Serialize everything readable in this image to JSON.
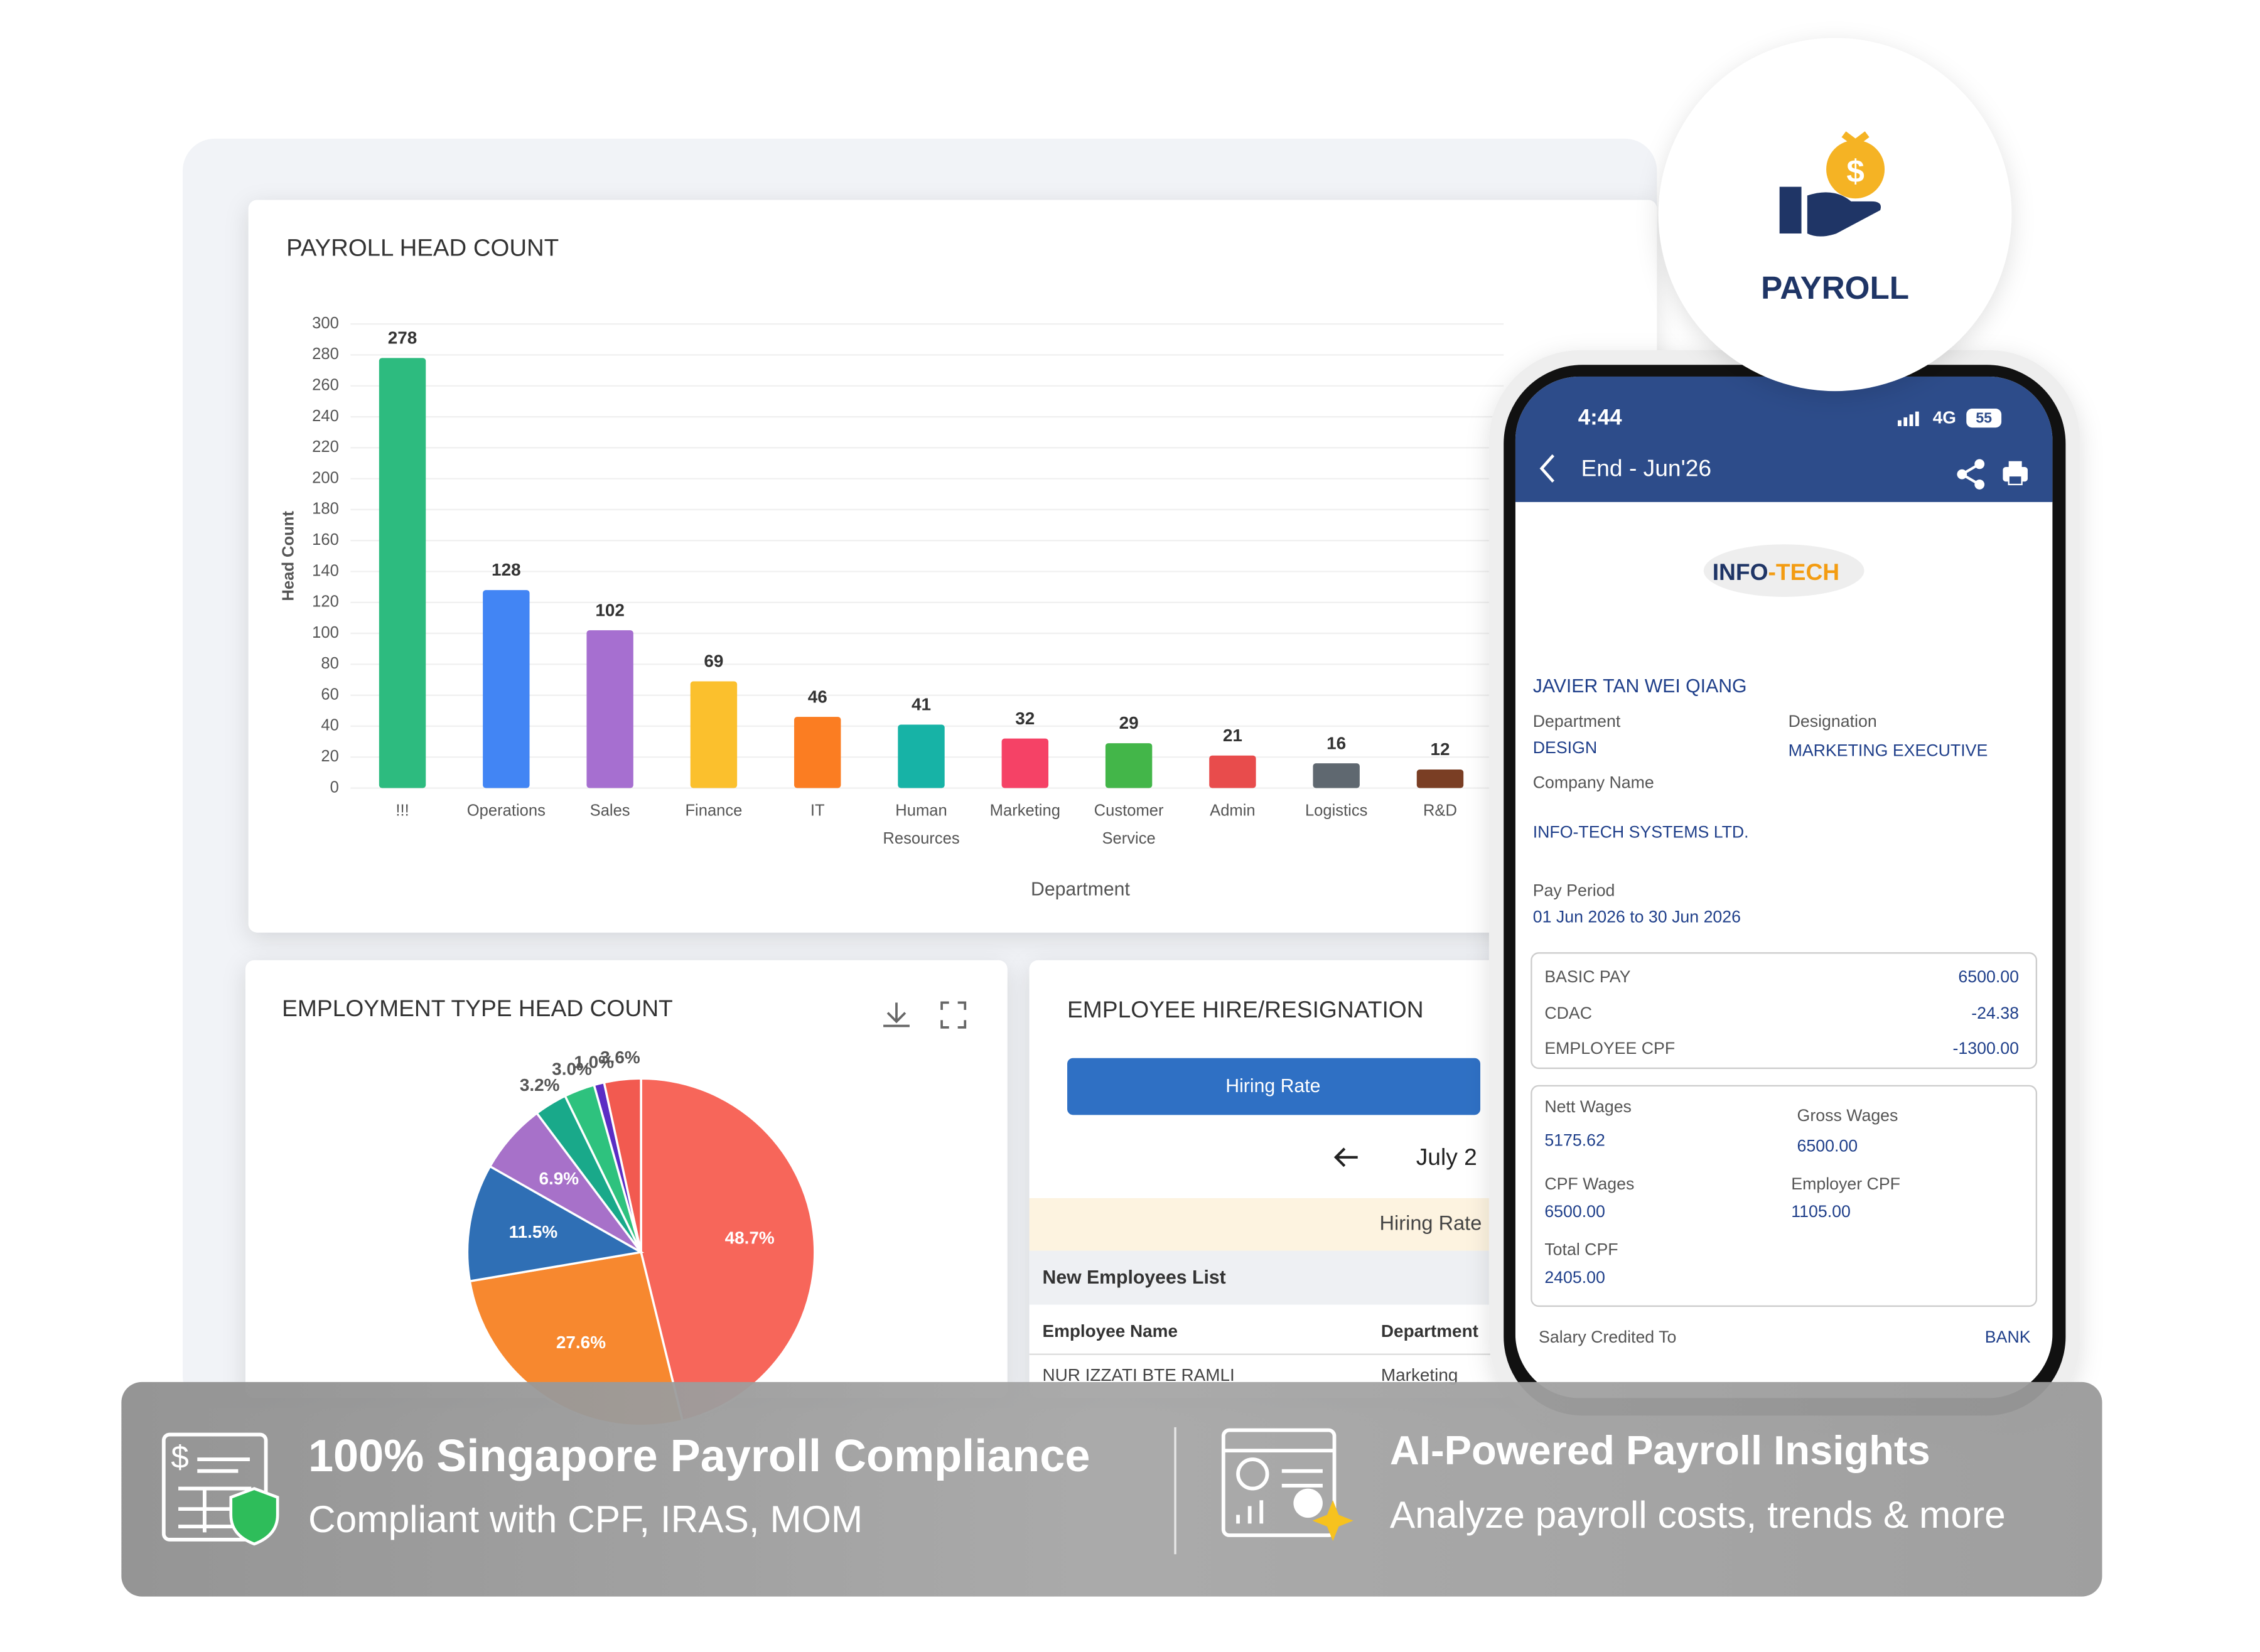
{
  "chart_data": [
    {
      "type": "bar",
      "title": "PAYROLL HEAD COUNT",
      "x_label": "Department",
      "y_label": "Head Count",
      "categories": [
        "!!!",
        "Operations",
        "Sales",
        "Finance",
        "IT",
        "Human Resources",
        "Marketing",
        "Customer Service",
        "Admin",
        "Logistics",
        "R&D"
      ],
      "values": [
        278,
        128,
        102,
        69,
        46,
        41,
        32,
        29,
        21,
        16,
        12
      ],
      "colors": [
        "#2dbb7f",
        "#4285f4",
        "#a66fd0",
        "#fbc02d",
        "#fb7d22",
        "#17b3a6",
        "#f54266",
        "#43b649",
        "#e84c4c",
        "#5f6870",
        "#7a3e24"
      ],
      "ylim": [
        0,
        300
      ],
      "yticks": [
        0,
        20,
        40,
        60,
        80,
        100,
        120,
        140,
        160,
        180,
        200,
        220,
        240,
        260,
        280,
        300
      ],
      "grid": true
    },
    {
      "type": "pie",
      "title": "EMPLOYMENT TYPE HEAD COUNT",
      "categories": [
        null,
        null,
        null,
        null,
        null,
        null,
        null,
        null
      ],
      "values": [
        48.7,
        27.6,
        11.5,
        6.9,
        3.2,
        3.0,
        1.0,
        3.6
      ],
      "value_labels": [
        "48.7%",
        "27.6%",
        "11.5%",
        "6.9%",
        "3.2%",
        "3.0%",
        "1.0%",
        "3.6%"
      ],
      "colors": [
        "#f7665a",
        "#f7882f",
        "#2f6fb5",
        "#a771c9",
        "#19a98a",
        "#2ec27e",
        "#5b2dc4",
        "#f25a50"
      ]
    }
  ],
  "badge": {
    "title": "PAYROLL"
  },
  "hire_panel": {
    "title": "EMPLOYEE HIRE/RESIGNATION",
    "button": "Hiring Rate",
    "month": "July 2",
    "subheader": "Hiring Rate",
    "list_title": "New Employees List",
    "columns": [
      "Employee Name",
      "Department"
    ],
    "rows": [
      [
        "NUR IZZATI BTE RAMLI",
        "Marketing"
      ]
    ]
  },
  "phone": {
    "time": "4:44",
    "network": "4G",
    "battery": "55",
    "nav_title": "End - Jun'26",
    "logo": [
      "INFO",
      "-TECH"
    ],
    "employee": "JAVIER TAN WEI QIANG",
    "fields": [
      [
        "Department",
        "DESIGN"
      ],
      [
        "Designation",
        "MARKETING EXECUTIVE"
      ],
      [
        "Company Name",
        "INFO-TECH SYSTEMS LTD."
      ],
      [
        "Pay Period",
        "01 Jun 2026 to 30 Jun 2026"
      ]
    ],
    "pay_items": [
      [
        "BASIC PAY",
        "6500.00"
      ],
      [
        "CDAC",
        "-24.38"
      ],
      [
        "EMPLOYEE CPF",
        "-1300.00"
      ]
    ],
    "summary": [
      [
        "Nett Wages",
        "5175.62"
      ],
      [
        "Gross Wages",
        "6500.00"
      ],
      [
        "CPF Wages",
        "6500.00"
      ],
      [
        "Employer CPF",
        "1105.00"
      ],
      [
        "Total CPF",
        "2405.00"
      ]
    ],
    "salary_credited": [
      "Salary Credited To",
      "BANK"
    ]
  },
  "banner": [
    {
      "title": "100% Singapore Payroll Compliance",
      "subtitle": "Compliant with CPF, IRAS, MOM"
    },
    {
      "title": "AI-Powered Payroll Insights",
      "subtitle": "Analyze payroll costs, trends & more"
    }
  ]
}
